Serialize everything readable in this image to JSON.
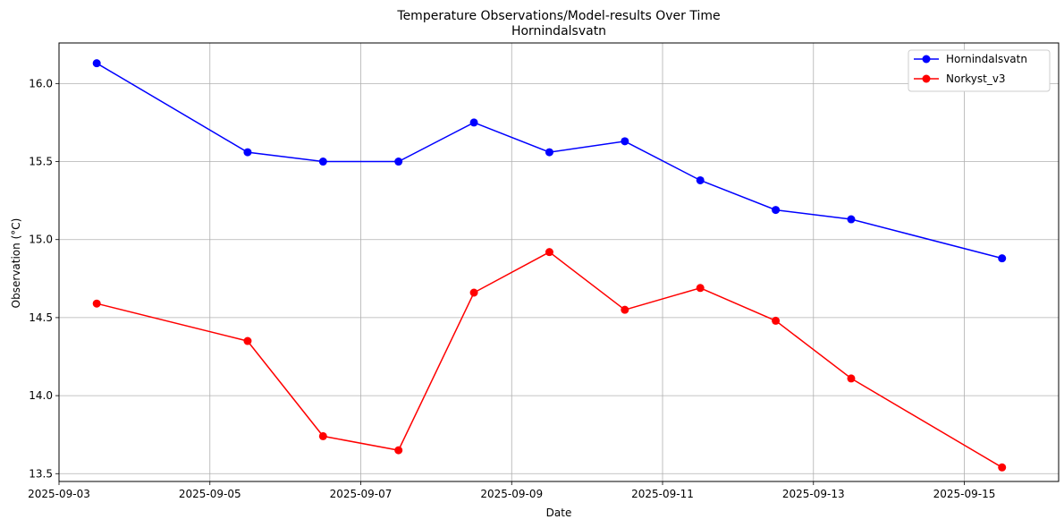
{
  "chart_data": {
    "type": "line",
    "title": "Temperature Observations/Model-results Over Time",
    "subtitle": "Hornindalsvatn",
    "xlabel": "Date",
    "ylabel": "Observation (°C)",
    "grid": true,
    "legend_position": "top-right",
    "x": [
      "2025-09-03 12:00",
      "2025-09-05 12:00",
      "2025-09-06 12:00",
      "2025-09-07 12:00",
      "2025-09-08 12:00",
      "2025-09-09 12:00",
      "2025-09-10 12:00",
      "2025-09-11 12:00",
      "2025-09-12 12:00",
      "2025-09-13 12:00",
      "2025-09-15 12:00"
    ],
    "xlim": [
      "2025-09-03 00:00",
      "2025-09-16 06:00"
    ],
    "xticks": [
      "2025-09-03",
      "2025-09-05",
      "2025-09-07",
      "2025-09-09",
      "2025-09-11",
      "2025-09-13",
      "2025-09-15"
    ],
    "ylim": [
      13.45,
      16.26
    ],
    "yticks": [
      "13.5",
      "14.0",
      "14.5",
      "15.0",
      "15.5",
      "16.0"
    ],
    "series": [
      {
        "name": "Hornindalsvatn",
        "color": "#0000ff",
        "values": [
          16.13,
          15.56,
          15.5,
          15.5,
          15.75,
          15.56,
          15.63,
          15.38,
          15.19,
          15.13,
          14.88
        ]
      },
      {
        "name": "Norkyst_v3",
        "color": "#ff0000",
        "values": [
          14.59,
          14.35,
          13.74,
          13.65,
          14.66,
          14.92,
          14.55,
          14.69,
          14.48,
          14.11,
          13.54
        ]
      }
    ]
  }
}
